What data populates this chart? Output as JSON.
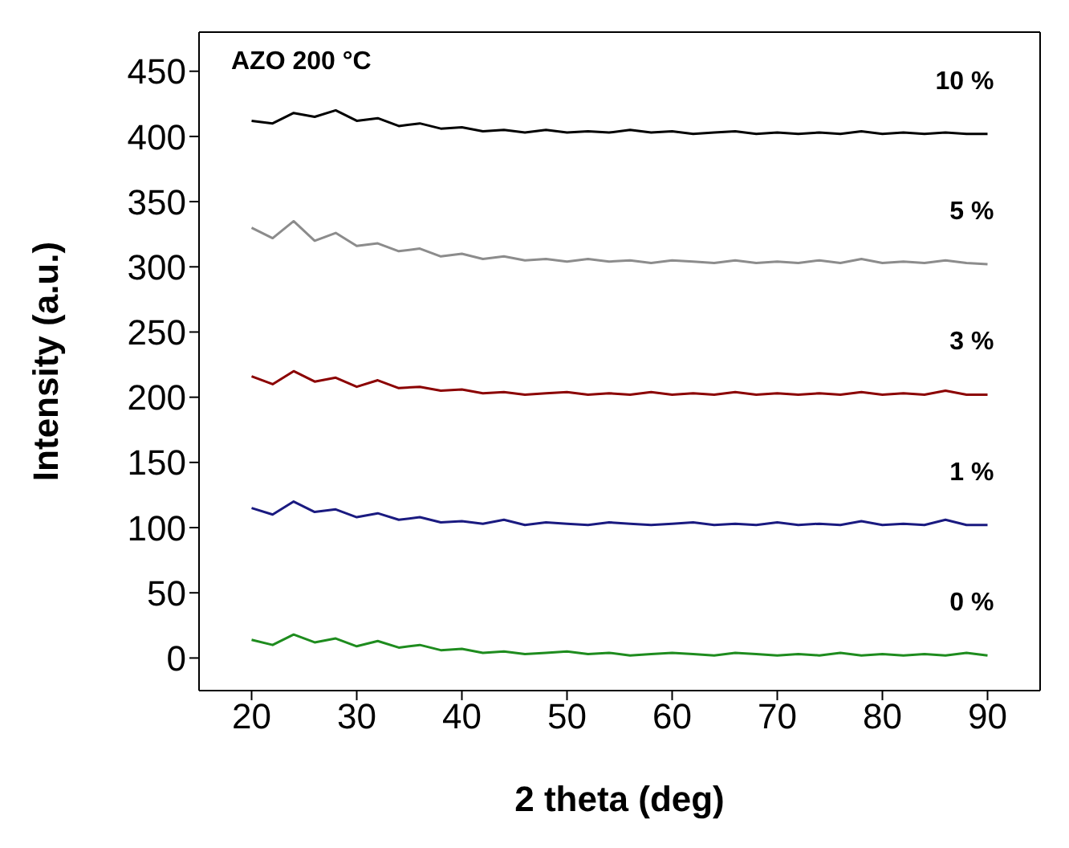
{
  "chart_data": {
    "type": "line",
    "xlabel": "2 theta (deg)",
    "ylabel": "Intensity (a.u.)",
    "annotations": [
      "AZO 200 °C"
    ],
    "x": [
      20,
      22,
      24,
      26,
      28,
      30,
      32,
      34,
      36,
      38,
      40,
      42,
      44,
      46,
      48,
      50,
      52,
      54,
      56,
      58,
      60,
      62,
      64,
      66,
      68,
      70,
      72,
      74,
      76,
      78,
      80,
      82,
      84,
      86,
      88,
      90
    ],
    "series": [
      {
        "name": "0 %",
        "color": "#1e8c1e",
        "values": [
          14,
          10,
          18,
          12,
          15,
          9,
          13,
          8,
          10,
          6,
          7,
          4,
          5,
          3,
          4,
          5,
          3,
          4,
          2,
          3,
          4,
          3,
          2,
          4,
          3,
          2,
          3,
          2,
          4,
          2,
          3,
          2,
          3,
          2,
          4,
          2
        ]
      },
      {
        "name": "1 %",
        "color": "#1a1a80",
        "values": [
          115,
          110,
          120,
          112,
          114,
          108,
          111,
          106,
          108,
          104,
          105,
          103,
          106,
          102,
          104,
          103,
          102,
          104,
          103,
          102,
          103,
          104,
          102,
          103,
          102,
          104,
          102,
          103,
          102,
          105,
          102,
          103,
          102,
          106,
          102,
          102
        ]
      },
      {
        "name": "3 %",
        "color": "#8b0000",
        "values": [
          216,
          210,
          220,
          212,
          215,
          208,
          213,
          207,
          208,
          205,
          206,
          203,
          204,
          202,
          203,
          204,
          202,
          203,
          202,
          204,
          202,
          203,
          202,
          204,
          202,
          203,
          202,
          203,
          202,
          204,
          202,
          203,
          202,
          205,
          202,
          202
        ]
      },
      {
        "name": "5 %",
        "color": "#8c8c8c",
        "values": [
          330,
          322,
          335,
          320,
          326,
          316,
          318,
          312,
          314,
          308,
          310,
          306,
          308,
          305,
          306,
          304,
          306,
          304,
          305,
          303,
          305,
          304,
          303,
          305,
          303,
          304,
          303,
          305,
          303,
          306,
          303,
          304,
          303,
          305,
          303,
          302
        ]
      },
      {
        "name": "10 %",
        "color": "#000000",
        "values": [
          412,
          410,
          418,
          415,
          420,
          412,
          414,
          408,
          410,
          406,
          407,
          404,
          405,
          403,
          405,
          403,
          404,
          403,
          405,
          403,
          404,
          402,
          403,
          404,
          402,
          403,
          402,
          403,
          402,
          404,
          402,
          403,
          402,
          403,
          402,
          402
        ]
      }
    ],
    "xlim": [
      15,
      95
    ],
    "xticks": [
      20,
      30,
      40,
      50,
      60,
      70,
      80,
      90
    ],
    "ylim": [
      -25,
      480
    ],
    "yticks": [
      0,
      50,
      100,
      150,
      200,
      250,
      300,
      350,
      400,
      450
    ],
    "grid": false,
    "legend": false,
    "marker": "none",
    "line_style": "solid"
  }
}
